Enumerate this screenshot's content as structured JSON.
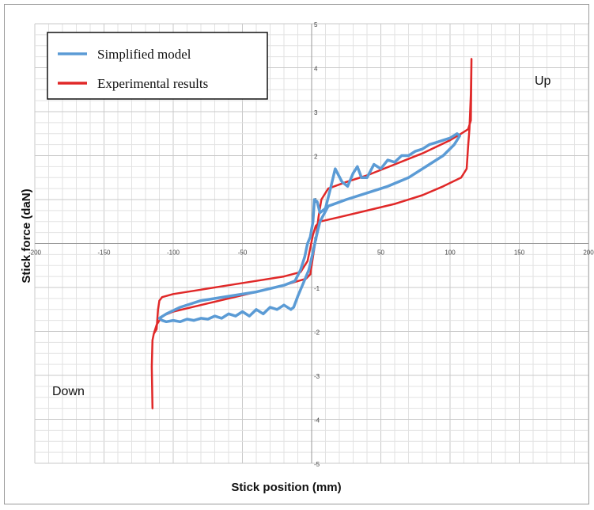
{
  "chart_data": {
    "type": "line",
    "title": "",
    "xlabel": "Stick position (mm)",
    "ylabel": "Stick force (daN)",
    "xlim": [
      -200,
      200
    ],
    "ylim": [
      -5,
      5
    ],
    "x_ticks": [
      "-200",
      "-150",
      "-100",
      "-50",
      "0",
      "50",
      "100",
      "150",
      "200"
    ],
    "y_ticks": [
      "5",
      "4",
      "3",
      "2",
      "1",
      "0",
      "-1",
      "-2",
      "-3",
      "-4",
      "-5"
    ],
    "grid": true,
    "legend_position": "top-left",
    "annotations": [
      {
        "text": "Up",
        "x": 160,
        "y": 3.8
      },
      {
        "text": "Down",
        "x": -180,
        "y": -3.3
      }
    ],
    "series": [
      {
        "name": "Simplified model",
        "color": "#5b9bd5",
        "points": [
          [
            -15,
            -1.5
          ],
          [
            -20,
            -1.4
          ],
          [
            -25,
            -1.5
          ],
          [
            -30,
            -1.45
          ],
          [
            -35,
            -1.6
          ],
          [
            -40,
            -1.5
          ],
          [
            -45,
            -1.65
          ],
          [
            -50,
            -1.55
          ],
          [
            -55,
            -1.65
          ],
          [
            -60,
            -1.6
          ],
          [
            -65,
            -1.7
          ],
          [
            -70,
            -1.65
          ],
          [
            -75,
            -1.72
          ],
          [
            -80,
            -1.7
          ],
          [
            -85,
            -1.75
          ],
          [
            -90,
            -1.72
          ],
          [
            -95,
            -1.78
          ],
          [
            -100,
            -1.75
          ],
          [
            -105,
            -1.78
          ],
          [
            -108,
            -1.75
          ],
          [
            -110,
            -1.7
          ],
          [
            -105,
            -1.6
          ],
          [
            -95,
            -1.45
          ],
          [
            -80,
            -1.3
          ],
          [
            -60,
            -1.2
          ],
          [
            -40,
            -1.1
          ],
          [
            -20,
            -0.95
          ],
          [
            -12,
            -0.85
          ],
          [
            -8,
            -0.6
          ],
          [
            -5,
            -0.3
          ],
          [
            -3,
            0.0
          ],
          [
            -1,
            0.15
          ],
          [
            1,
            0.5
          ],
          [
            2,
            1.0
          ],
          [
            4,
            0.95
          ],
          [
            6,
            0.7
          ],
          [
            10,
            0.8
          ],
          [
            14,
            1.3
          ],
          [
            17,
            1.7
          ],
          [
            22,
            1.4
          ],
          [
            26,
            1.3
          ],
          [
            30,
            1.6
          ],
          [
            33,
            1.75
          ],
          [
            36,
            1.5
          ],
          [
            40,
            1.5
          ],
          [
            45,
            1.8
          ],
          [
            50,
            1.7
          ],
          [
            55,
            1.9
          ],
          [
            60,
            1.85
          ],
          [
            65,
            2.0
          ],
          [
            70,
            2.0
          ],
          [
            75,
            2.1
          ],
          [
            80,
            2.15
          ],
          [
            85,
            2.25
          ],
          [
            90,
            2.3
          ],
          [
            95,
            2.35
          ],
          [
            100,
            2.4
          ],
          [
            105,
            2.5
          ],
          [
            107,
            2.45
          ],
          [
            103,
            2.25
          ],
          [
            95,
            2.0
          ],
          [
            85,
            1.8
          ],
          [
            70,
            1.5
          ],
          [
            55,
            1.3
          ],
          [
            40,
            1.15
          ],
          [
            25,
            1.0
          ],
          [
            12,
            0.85
          ],
          [
            6,
            0.5
          ],
          [
            3,
            0.1
          ],
          [
            1,
            -0.2
          ],
          [
            -2,
            -0.6
          ],
          [
            -6,
            -0.9
          ],
          [
            -10,
            -1.2
          ],
          [
            -13,
            -1.45
          ],
          [
            -15,
            -1.5
          ]
        ]
      },
      {
        "name": "Experimental results",
        "color": "#e02828",
        "points": [
          [
            -115,
            -3.75
          ],
          [
            -115.5,
            -2.8
          ],
          [
            -115,
            -2.2
          ],
          [
            -114,
            -2.05
          ],
          [
            -112,
            -1.95
          ],
          [
            -111,
            -1.5
          ],
          [
            -110,
            -1.3
          ],
          [
            -108,
            -1.22
          ],
          [
            -100,
            -1.15
          ],
          [
            -80,
            -1.05
          ],
          [
            -60,
            -0.95
          ],
          [
            -40,
            -0.85
          ],
          [
            -20,
            -0.75
          ],
          [
            -8,
            -0.65
          ],
          [
            -3,
            -0.4
          ],
          [
            -1,
            -0.1
          ],
          [
            1,
            0.2
          ],
          [
            3,
            0.4
          ],
          [
            6,
            0.5
          ],
          [
            20,
            0.6
          ],
          [
            40,
            0.75
          ],
          [
            60,
            0.9
          ],
          [
            80,
            1.1
          ],
          [
            95,
            1.3
          ],
          [
            108,
            1.5
          ],
          [
            112,
            1.7
          ],
          [
            113,
            2.2
          ],
          [
            114,
            2.6
          ],
          [
            115,
            3.4
          ],
          [
            115.5,
            4.2
          ],
          [
            115,
            2.8
          ],
          [
            113,
            2.6
          ],
          [
            108,
            2.5
          ],
          [
            100,
            2.35
          ],
          [
            80,
            2.05
          ],
          [
            60,
            1.8
          ],
          [
            40,
            1.55
          ],
          [
            25,
            1.4
          ],
          [
            12,
            1.25
          ],
          [
            7,
            1.0
          ],
          [
            5,
            0.6
          ],
          [
            3,
            0.1
          ],
          [
            1,
            -0.3
          ],
          [
            -1,
            -0.7
          ],
          [
            -4,
            -0.8
          ],
          [
            -20,
            -0.95
          ],
          [
            -40,
            -1.1
          ],
          [
            -60,
            -1.25
          ],
          [
            -80,
            -1.4
          ],
          [
            -100,
            -1.55
          ],
          [
            -108,
            -1.65
          ],
          [
            -112,
            -1.85
          ],
          [
            -114,
            -2.05
          ]
        ]
      }
    ]
  }
}
